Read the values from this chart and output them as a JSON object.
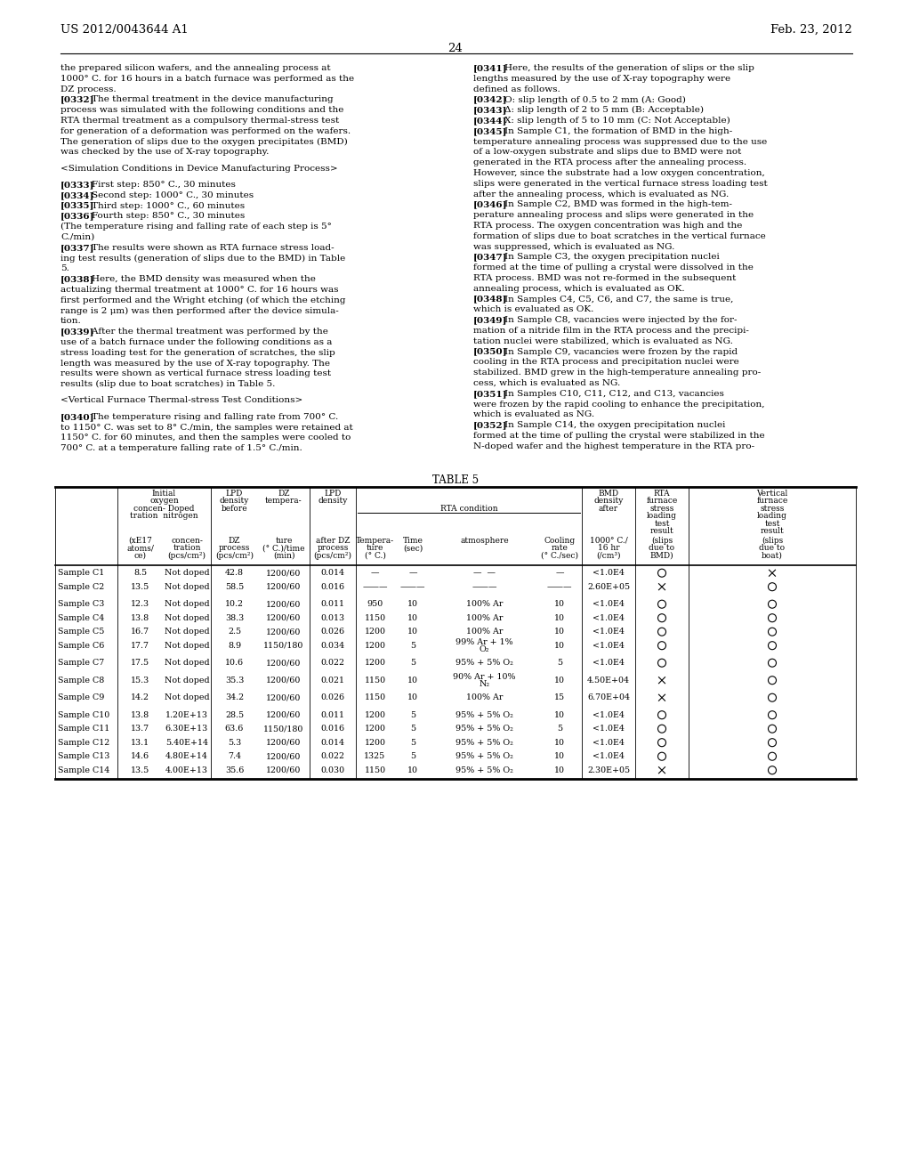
{
  "header_left": "US 2012/0043644 A1",
  "header_right": "Feb. 23, 2012",
  "page_number": "24",
  "bg_color": "#ffffff",
  "text_color": "#000000",
  "left_column": [
    [
      "normal",
      "the prepared silicon wafers, and the annealing process at"
    ],
    [
      "normal",
      "1000° C. for 16 hours in a batch furnace was performed as the"
    ],
    [
      "normal",
      "DZ process."
    ],
    [
      "bold_start",
      "[0332]",
      "    The thermal treatment in the device manufacturing"
    ],
    [
      "normal",
      "process was simulated with the following conditions and the"
    ],
    [
      "normal",
      "RTA thermal treatment as a compulsory thermal-stress test"
    ],
    [
      "normal",
      "for generation of a deformation was performed on the wafers."
    ],
    [
      "normal",
      "The generation of slips due to the oxygen precipitates (BMD)"
    ],
    [
      "normal",
      "was checked by the use of X-ray topography."
    ],
    [
      "blank",
      ""
    ],
    [
      "normal",
      "<Simulation Conditions in Device Manufacturing Process>"
    ],
    [
      "blank",
      ""
    ],
    [
      "bold_start",
      "[0333]",
      "    First step: 850° C., 30 minutes"
    ],
    [
      "bold_start",
      "[0334]",
      "    Second step: 1000° C., 30 minutes"
    ],
    [
      "bold_start",
      "[0335]",
      "    Third step: 1000° C., 60 minutes"
    ],
    [
      "bold_start",
      "[0336]",
      "    Fourth step: 850° C., 30 minutes"
    ],
    [
      "normal",
      "(The temperature rising and falling rate of each step is 5°"
    ],
    [
      "normal",
      "C./min)"
    ],
    [
      "bold_start",
      "[0337]",
      "    The results were shown as RTA furnace stress load-"
    ],
    [
      "normal",
      "ing test results (generation of slips due to the BMD) in Table"
    ],
    [
      "normal",
      "5."
    ],
    [
      "bold_start",
      "[0338]",
      "    Here, the BMD density was measured when the"
    ],
    [
      "normal",
      "actualizing thermal treatment at 1000° C. for 16 hours was"
    ],
    [
      "normal",
      "first performed and the Wright etching (of which the etching"
    ],
    [
      "normal",
      "range is 2 μm) was then performed after the device simula-"
    ],
    [
      "normal",
      "tion."
    ],
    [
      "bold_start",
      "[0339]",
      "    After the thermal treatment was performed by the"
    ],
    [
      "normal",
      "use of a batch furnace under the following conditions as a"
    ],
    [
      "normal",
      "stress loading test for the generation of scratches, the slip"
    ],
    [
      "normal",
      "length was measured by the use of X-ray topography. The"
    ],
    [
      "normal",
      "results were shown as vertical furnace stress loading test"
    ],
    [
      "normal",
      "results (slip due to boat scratches) in Table 5."
    ],
    [
      "blank",
      ""
    ],
    [
      "normal",
      "<Vertical Furnace Thermal-stress Test Conditions>"
    ],
    [
      "blank",
      ""
    ],
    [
      "bold_start",
      "[0340]",
      "    The temperature rising and falling rate from 700° C."
    ],
    [
      "normal",
      "to 1150° C. was set to 8° C./min, the samples were retained at"
    ],
    [
      "normal",
      "1150° C. for 60 minutes, and then the samples were cooled to"
    ],
    [
      "normal",
      "700° C. at a temperature falling rate of 1.5° C./min."
    ]
  ],
  "right_column": [
    [
      "bold_start",
      "[0341]",
      "    Here, the results of the generation of slips or the slip"
    ],
    [
      "normal",
      "lengths measured by the use of X-ray topography were"
    ],
    [
      "normal",
      "defined as follows."
    ],
    [
      "bold_start",
      "[0342]",
      "    O: slip length of 0.5 to 2 mm (A: Good)"
    ],
    [
      "bold_start",
      "[0343]",
      "    Δ: slip length of 2 to 5 mm (B: Acceptable)"
    ],
    [
      "bold_start",
      "[0344]",
      "    X: slip length of 5 to 10 mm (C: Not Acceptable)"
    ],
    [
      "bold_start",
      "[0345]",
      "    In Sample C1, the formation of BMD in the high-"
    ],
    [
      "normal",
      "temperature annealing process was suppressed due to the use"
    ],
    [
      "normal",
      "of a low-oxygen substrate and slips due to BMD were not"
    ],
    [
      "normal",
      "generated in the RTA process after the annealing process."
    ],
    [
      "normal",
      "However, since the substrate had a low oxygen concentration,"
    ],
    [
      "normal",
      "slips were generated in the vertical furnace stress loading test"
    ],
    [
      "normal",
      "after the annealing process, which is evaluated as NG."
    ],
    [
      "bold_start",
      "[0346]",
      "    In Sample C2, BMD was formed in the high-tem-"
    ],
    [
      "normal",
      "perature annealing process and slips were generated in the"
    ],
    [
      "normal",
      "RTA process. The oxygen concentration was high and the"
    ],
    [
      "normal",
      "formation of slips due to boat scratches in the vertical furnace"
    ],
    [
      "normal",
      "was suppressed, which is evaluated as NG."
    ],
    [
      "bold_start",
      "[0347]",
      "    In Sample C3, the oxygen precipitation nuclei"
    ],
    [
      "normal",
      "formed at the time of pulling a crystal were dissolved in the"
    ],
    [
      "normal",
      "RTA process. BMD was not re-formed in the subsequent"
    ],
    [
      "normal",
      "annealing process, which is evaluated as OK."
    ],
    [
      "bold_start",
      "[0348]",
      "    In Samples C4, C5, C6, and C7, the same is true,"
    ],
    [
      "normal",
      "which is evaluated as OK."
    ],
    [
      "bold_start",
      "[0349]",
      "    In Sample C8, vacancies were injected by the for-"
    ],
    [
      "normal",
      "mation of a nitride film in the RTA process and the precipi-"
    ],
    [
      "normal",
      "tation nuclei were stabilized, which is evaluated as NG."
    ],
    [
      "bold_start",
      "[0350]",
      "    In Sample C9, vacancies were frozen by the rapid"
    ],
    [
      "normal",
      "cooling in the RTA process and precipitation nuclei were"
    ],
    [
      "normal",
      "stabilized. BMD grew in the high-temperature annealing pro-"
    ],
    [
      "normal",
      "cess, which is evaluated as NG."
    ],
    [
      "bold_start",
      "[0351]",
      "    In Samples C10, C11, C12, and C13, vacancies"
    ],
    [
      "normal",
      "were frozen by the rapid cooling to enhance the precipitation,"
    ],
    [
      "normal",
      "which is evaluated as NG."
    ],
    [
      "bold_start",
      "[0352]",
      "    In Sample C14, the oxygen precipitation nuclei"
    ],
    [
      "normal",
      "formed at the time of pulling the crystal were stabilized in the"
    ],
    [
      "normal",
      "N-doped wafer and the highest temperature in the RTA pro-"
    ]
  ],
  "table_title": "TABLE 5",
  "table_rows": [
    [
      "Sample C1",
      "8.5",
      "Not doped",
      "42.8",
      "1200/60",
      "0.014",
      "—",
      "—",
      "—  —",
      "—",
      "<1.0E4",
      "O",
      "X"
    ],
    [
      "Sample C2",
      "13.5",
      "Not doped",
      "58.5",
      "1200/60",
      "0.016",
      "———",
      "———",
      "———",
      "———",
      "2.60E+05",
      "X",
      "O"
    ],
    [
      "Sample C3",
      "12.3",
      "Not doped",
      "10.2",
      "1200/60",
      "0.011",
      "950",
      "10",
      "100% Ar",
      "10",
      "<1.0E4",
      "O",
      "O"
    ],
    [
      "Sample C4",
      "13.8",
      "Not doped",
      "38.3",
      "1200/60",
      "0.013",
      "1150",
      "10",
      "100% Ar",
      "10",
      "<1.0E4",
      "O",
      "O"
    ],
    [
      "Sample C5",
      "16.7",
      "Not doped",
      "2.5",
      "1200/60",
      "0.026",
      "1200",
      "10",
      "100% Ar",
      "10",
      "<1.0E4",
      "O",
      "O"
    ],
    [
      "Sample C6",
      "17.7",
      "Not doped",
      "8.9",
      "1150/180",
      "0.034",
      "1200",
      "5",
      "99% Ar + 1%\nO₂",
      "10",
      "<1.0E4",
      "O",
      "O"
    ],
    [
      "Sample C7",
      "17.5",
      "Not doped",
      "10.6",
      "1200/60",
      "0.022",
      "1200",
      "5",
      "95% + 5% O₂",
      "5",
      "<1.0E4",
      "O",
      "O"
    ],
    [
      "Sample C8",
      "15.3",
      "Not doped",
      "35.3",
      "1200/60",
      "0.021",
      "1150",
      "10",
      "90% Ar + 10%\nN₂",
      "10",
      "4.50E+04",
      "X",
      "O"
    ],
    [
      "Sample C9",
      "14.2",
      "Not doped",
      "34.2",
      "1200/60",
      "0.026",
      "1150",
      "10",
      "100% Ar",
      "15",
      "6.70E+04",
      "X",
      "O"
    ],
    [
      "Sample C10",
      "13.8",
      "1.20E+13",
      "28.5",
      "1200/60",
      "0.011",
      "1200",
      "5",
      "95% + 5% O₂",
      "10",
      "<1.0E4",
      "O",
      "O"
    ],
    [
      "Sample C11",
      "13.7",
      "6.30E+13",
      "63.6",
      "1150/180",
      "0.016",
      "1200",
      "5",
      "95% + 5% O₂",
      "5",
      "<1.0E4",
      "O",
      "O"
    ],
    [
      "Sample C12",
      "13.1",
      "5.40E+14",
      "5.3",
      "1200/60",
      "0.014",
      "1200",
      "5",
      "95% + 5% O₂",
      "10",
      "<1.0E4",
      "O",
      "O"
    ],
    [
      "Sample C13",
      "14.6",
      "4.80E+14",
      "7.4",
      "1200/60",
      "0.022",
      "1325",
      "5",
      "95% + 5% O₂",
      "10",
      "<1.0E4",
      "O",
      "O"
    ],
    [
      "Sample C14",
      "13.5",
      "4.00E+13",
      "35.6",
      "1200/60",
      "0.030",
      "1150",
      "10",
      "95% + 5% O₂",
      "10",
      "2.30E+05",
      "X",
      "O"
    ]
  ],
  "groups": [
    [
      0,
      1
    ],
    [
      2,
      3,
      4,
      5
    ],
    [
      6
    ],
    [
      7
    ],
    [
      8
    ],
    [
      9,
      10,
      11,
      12,
      13
    ]
  ]
}
